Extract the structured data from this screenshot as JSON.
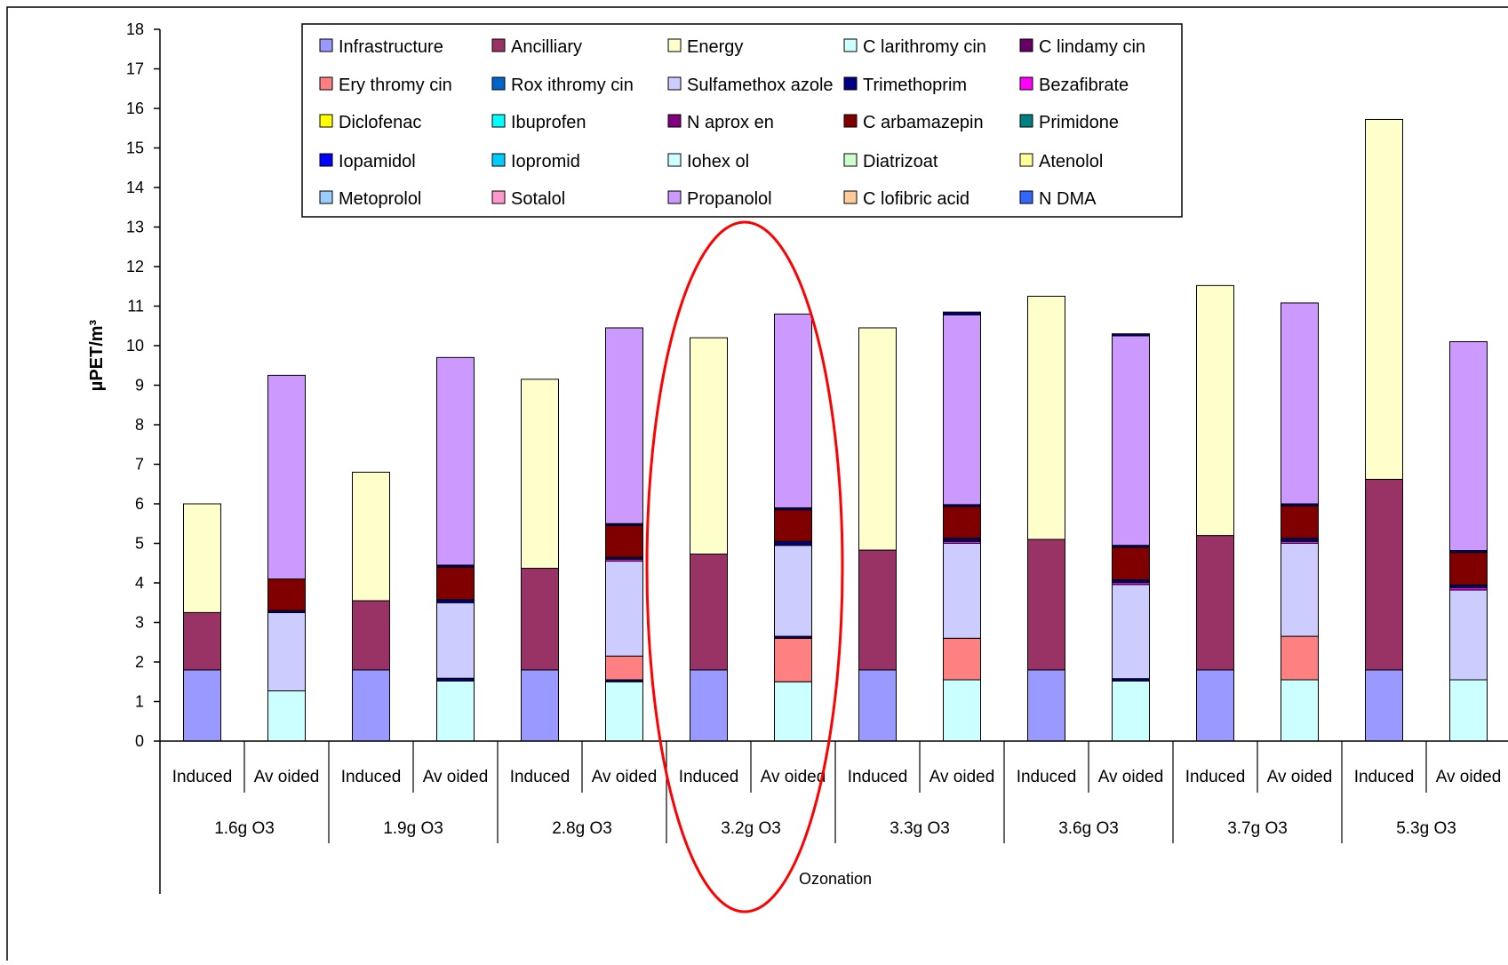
{
  "chart_data": {
    "type": "bar",
    "stacked": true,
    "ylabel": "µPET/m³",
    "xlabel": "Ozonation",
    "ylim": [
      0,
      18
    ],
    "yticks": [
      0,
      1,
      2,
      3,
      4,
      5,
      6,
      7,
      8,
      9,
      10,
      11,
      12,
      13,
      14,
      15,
      16,
      17,
      18
    ],
    "grid": false,
    "legend_position": "top",
    "highlight": {
      "group": "3.2g O3",
      "shape": "ellipse",
      "color": "#ff0000"
    },
    "groups": [
      "1.6g O3",
      "1.9g O3",
      "2.8g O3",
      "3.2g O3",
      "3.3g O3",
      "3.6g O3",
      "3.7g O3",
      "5.3g O3"
    ],
    "subcategories": [
      "Induced",
      "Avoided"
    ],
    "subcategory_labels": [
      "Induced",
      "Av oided"
    ],
    "legend": [
      {
        "name": "Infrastructure",
        "label": "Infrastructure",
        "color": "#9999ff"
      },
      {
        "name": "Ancilliary",
        "label": "Ancilliary",
        "color": "#993366"
      },
      {
        "name": "Energy",
        "label": "Energy",
        "color": "#ffffcc"
      },
      {
        "name": "Clarithromycin",
        "label": "C larithromy cin",
        "color": "#ccffff"
      },
      {
        "name": "Clindamycin",
        "label": "C lindamy cin",
        "color": "#660066"
      },
      {
        "name": "Erythromycin",
        "label": "Ery thromy cin",
        "color": "#ff8080"
      },
      {
        "name": "Roxithromycin",
        "label": "Rox ithromy cin",
        "color": "#0066cc"
      },
      {
        "name": "Sulfamethoxazole",
        "label": "Sulfamethox azole",
        "color": "#ccccff"
      },
      {
        "name": "Trimethoprim",
        "label": "Trimethoprim",
        "color": "#000080"
      },
      {
        "name": "Bezafibrate",
        "label": "Bezafibrate",
        "color": "#ff00ff"
      },
      {
        "name": "Diclofenac",
        "label": "Diclofenac",
        "color": "#ffff00"
      },
      {
        "name": "Ibuprofen",
        "label": "Ibuprofen",
        "color": "#00ffff"
      },
      {
        "name": "Naproxen",
        "label": "N aprox en",
        "color": "#800080"
      },
      {
        "name": "Carbamazepin",
        "label": "C arbamazepin",
        "color": "#800000"
      },
      {
        "name": "Primidone",
        "label": "Primidone",
        "color": "#008080"
      },
      {
        "name": "Iopamidol",
        "label": "Iopamidol",
        "color": "#0000ff"
      },
      {
        "name": "Iopromid",
        "label": "Iopromid",
        "color": "#00ccff"
      },
      {
        "name": "Iohexol",
        "label": "Iohex ol",
        "color": "#ccffff"
      },
      {
        "name": "Diatrizoat",
        "label": "Diatrizoat",
        "color": "#ccffcc"
      },
      {
        "name": "Atenolol",
        "label": "Atenolol",
        "color": "#ffff99"
      },
      {
        "name": "Metoprolol",
        "label": "Metoprolol",
        "color": "#99ccff"
      },
      {
        "name": "Sotalol",
        "label": "Sotalol",
        "color": "#ff99cc"
      },
      {
        "name": "Propanolol",
        "label": "Propanolol",
        "color": "#cc99ff"
      },
      {
        "name": "Clofibric acid",
        "label": "C lofibric acid",
        "color": "#ffcc99"
      },
      {
        "name": "NDMA",
        "label": "N DMA",
        "color": "#3366ff"
      }
    ],
    "bars": [
      {
        "group": "1.6g O3",
        "sub": "Induced",
        "segments": [
          [
            "Infrastructure",
            1.8
          ],
          [
            "Ancilliary",
            1.45
          ],
          [
            "Energy",
            2.75
          ]
        ]
      },
      {
        "group": "1.6g O3",
        "sub": "Avoided",
        "segments": [
          [
            "Clarithromycin",
            1.27
          ],
          [
            "Sulfamethoxazole",
            1.98
          ],
          [
            "Trimethoprim",
            0.05
          ],
          [
            "Carbamazepin",
            0.8
          ],
          [
            "Propanolol",
            5.15
          ]
        ]
      },
      {
        "group": "1.9g O3",
        "sub": "Induced",
        "segments": [
          [
            "Infrastructure",
            1.8
          ],
          [
            "Ancilliary",
            1.75
          ],
          [
            "Energy",
            3.25
          ]
        ]
      },
      {
        "group": "1.9g O3",
        "sub": "Avoided",
        "segments": [
          [
            "Clarithromycin",
            1.52
          ],
          [
            "Trimethoprim",
            0.07
          ],
          [
            "Sulfamethoxazole",
            1.91
          ],
          [
            "Trimethoprim",
            0.08
          ],
          [
            "Carbamazepin",
            0.82
          ],
          [
            "Trimethoprim",
            0.05
          ],
          [
            "Propanolol",
            5.25
          ]
        ]
      },
      {
        "group": "2.8g O3",
        "sub": "Induced",
        "segments": [
          [
            "Infrastructure",
            1.8
          ],
          [
            "Ancilliary",
            2.57
          ],
          [
            "Energy",
            4.78
          ]
        ]
      },
      {
        "group": "2.8g O3",
        "sub": "Avoided",
        "segments": [
          [
            "Clarithromycin",
            1.5
          ],
          [
            "Trimethoprim",
            0.05
          ],
          [
            "Erythromycin",
            0.6
          ],
          [
            "Sulfamethoxazole",
            2.4
          ],
          [
            "Bezafibrate",
            0.05
          ],
          [
            "Trimethoprim",
            0.05
          ],
          [
            "Carbamazepin",
            0.8
          ],
          [
            "Trimethoprim",
            0.05
          ],
          [
            "Propanolol",
            4.95
          ]
        ]
      },
      {
        "group": "3.2g O3",
        "sub": "Induced",
        "segments": [
          [
            "Infrastructure",
            1.8
          ],
          [
            "Ancilliary",
            2.93
          ],
          [
            "Energy",
            5.47
          ]
        ]
      },
      {
        "group": "3.2g O3",
        "sub": "Avoided",
        "segments": [
          [
            "Clarithromycin",
            1.5
          ],
          [
            "Erythromycin",
            1.1
          ],
          [
            "Trimethoprim",
            0.05
          ],
          [
            "Sulfamethoxazole",
            2.3
          ],
          [
            "Trimethoprim",
            0.1
          ],
          [
            "Carbamazepin",
            0.8
          ],
          [
            "Trimethoprim",
            0.05
          ],
          [
            "Propanolol",
            4.9
          ]
        ]
      },
      {
        "group": "3.3g O3",
        "sub": "Induced",
        "segments": [
          [
            "Infrastructure",
            1.8
          ],
          [
            "Ancilliary",
            3.03
          ],
          [
            "Energy",
            5.62
          ]
        ]
      },
      {
        "group": "3.3g O3",
        "sub": "Avoided",
        "segments": [
          [
            "Clarithromycin",
            1.55
          ],
          [
            "Erythromycin",
            1.05
          ],
          [
            "Sulfamethoxazole",
            2.4
          ],
          [
            "Bezafibrate",
            0.05
          ],
          [
            "Trimethoprim",
            0.08
          ],
          [
            "Carbamazepin",
            0.8
          ],
          [
            "Trimethoprim",
            0.05
          ],
          [
            "Propanolol",
            4.8
          ],
          [
            "Trimethoprim",
            0.07
          ]
        ]
      },
      {
        "group": "3.6g O3",
        "sub": "Induced",
        "segments": [
          [
            "Infrastructure",
            1.8
          ],
          [
            "Ancilliary",
            3.3
          ],
          [
            "Energy",
            6.15
          ]
        ]
      },
      {
        "group": "3.6g O3",
        "sub": "Avoided",
        "segments": [
          [
            "Clarithromycin",
            1.52
          ],
          [
            "Trimethoprim",
            0.06
          ],
          [
            "Sulfamethoxazole",
            2.38
          ],
          [
            "Bezafibrate",
            0.05
          ],
          [
            "Trimethoprim",
            0.07
          ],
          [
            "Carbamazepin",
            0.82
          ],
          [
            "Trimethoprim",
            0.05
          ],
          [
            "Propanolol",
            5.3
          ],
          [
            "Trimethoprim",
            0.05
          ]
        ]
      },
      {
        "group": "3.7g O3",
        "sub": "Induced",
        "segments": [
          [
            "Infrastructure",
            1.8
          ],
          [
            "Ancilliary",
            3.4
          ],
          [
            "Energy",
            6.32
          ]
        ]
      },
      {
        "group": "3.7g O3",
        "sub": "Avoided",
        "segments": [
          [
            "Clarithromycin",
            1.55
          ],
          [
            "Erythromycin",
            1.1
          ],
          [
            "Sulfamethoxazole",
            2.35
          ],
          [
            "Bezafibrate",
            0.05
          ],
          [
            "Trimethoprim",
            0.08
          ],
          [
            "Carbamazepin",
            0.82
          ],
          [
            "Trimethoprim",
            0.05
          ],
          [
            "Propanolol",
            5.08
          ]
        ]
      },
      {
        "group": "5.3g O3",
        "sub": "Induced",
        "segments": [
          [
            "Infrastructure",
            1.8
          ],
          [
            "Ancilliary",
            4.82
          ],
          [
            "Energy",
            9.1
          ]
        ]
      },
      {
        "group": "5.3g O3",
        "sub": "Avoided",
        "segments": [
          [
            "Clarithromycin",
            1.55
          ],
          [
            "Sulfamethoxazole",
            2.27
          ],
          [
            "Bezafibrate",
            0.06
          ],
          [
            "Trimethoprim",
            0.07
          ],
          [
            "Carbamazepin",
            0.82
          ],
          [
            "Trimethoprim",
            0.05
          ],
          [
            "Propanolol",
            5.28
          ]
        ]
      }
    ]
  }
}
